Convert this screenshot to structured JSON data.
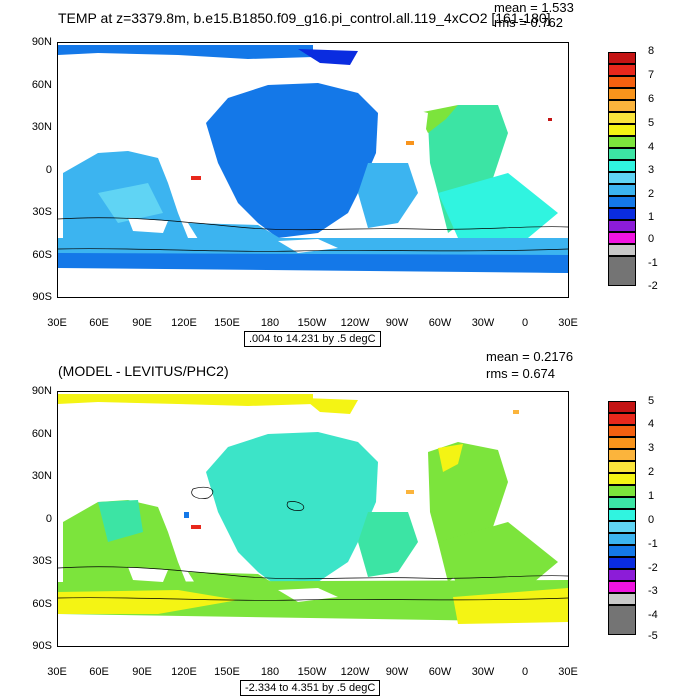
{
  "panels": [
    {
      "title": "TEMP at z=3379.8m, b.e15.B1850.f09_g16.pi_control.all.119_4xCO2 [161-180]",
      "mean_label": "mean = 1.533",
      "rms_label": "rms = 0.762",
      "range_label": ".004 to 14.231 by .5 degC",
      "lat_ticks": [
        "90N",
        "60N",
        "30N",
        "0",
        "30S",
        "60S",
        "90S"
      ],
      "lon_ticks": [
        "30E",
        "60E",
        "90E",
        "120E",
        "150E",
        "180",
        "150W",
        "120W",
        "90W",
        "60W",
        "30W",
        "0",
        "30E"
      ],
      "colorbar_labels": [
        "8",
        "7",
        "6",
        "5",
        "4",
        "3",
        "2",
        "1",
        "0",
        "-1",
        "-2"
      ],
      "colorbar_colors": [
        "#c41414",
        "#e8281c",
        "#f46010",
        "#f8941c",
        "#fbb43c",
        "#fae43c",
        "#f4f414",
        "#7ce43c",
        "#3ce4a4",
        "#30f4e0",
        "#60d4f4",
        "#3cb4f0",
        "#1478e8",
        "#0a2ce0",
        "#8c1cd8",
        "#f014e0",
        "#c8c8c8",
        "#747474"
      ],
      "field_color": "#3cb4f0"
    },
    {
      "title": "(MODEL - LEVITUS/PHC2)",
      "mean_label": "mean = 0.2176",
      "rms_label": "rms = 0.674",
      "range_label": "-2.334 to 4.351 by .5 degC",
      "lat_ticks": [
        "90N",
        "60N",
        "30N",
        "0",
        "30S",
        "60S",
        "90S"
      ],
      "lon_ticks": [
        "30E",
        "60E",
        "90E",
        "120E",
        "150E",
        "180",
        "150W",
        "120W",
        "90W",
        "60W",
        "30W",
        "0",
        "30E"
      ],
      "colorbar_labels": [
        "5",
        "4",
        "3",
        "2",
        "1",
        "0",
        "-1",
        "-2",
        "-3",
        "-4",
        "-5"
      ],
      "colorbar_colors": [
        "#c41414",
        "#e8281c",
        "#f46010",
        "#f8941c",
        "#fbb43c",
        "#fae43c",
        "#f4f414",
        "#7ce43c",
        "#3ce4a4",
        "#30f4e0",
        "#60d4f4",
        "#3cb4f0",
        "#1478e8",
        "#0a2ce0",
        "#8c1cd8",
        "#f014e0",
        "#c8c8c8",
        "#747474"
      ],
      "field_color": "#3ce4c8"
    }
  ]
}
